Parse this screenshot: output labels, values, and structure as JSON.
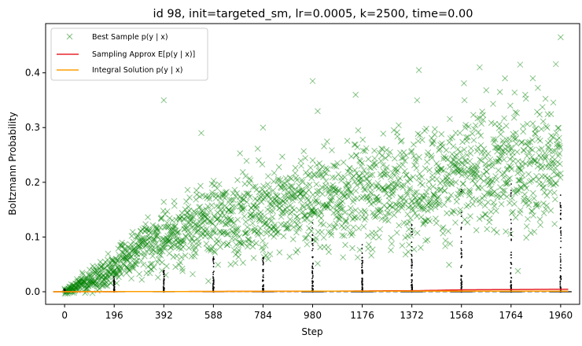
{
  "chart_data": {
    "type": "scatter",
    "title": "id 98, init=targeted_sm, lr=0.0005, k=2500, time=0.00",
    "xlabel": "Step",
    "ylabel": "Boltzmann Probability",
    "xlim": [
      -75,
      2035
    ],
    "ylim": [
      -0.023,
      0.49
    ],
    "xticks": [
      0,
      196,
      392,
      588,
      784,
      980,
      1176,
      1372,
      1568,
      1764,
      1960
    ],
    "yticks": [
      0.0,
      0.1,
      0.2,
      0.3,
      0.4
    ],
    "ytick_labels": [
      "0.0",
      "0.1",
      "0.2",
      "0.3",
      "0.4"
    ],
    "grid": false,
    "legend_position": "top-left",
    "series": [
      {
        "name": "Best Sample p(y | x)",
        "marker": "x",
        "color": "#008000",
        "trend": {
          "x": [
            0,
            100,
            196,
            300,
            392,
            500,
            588,
            700,
            784,
            900,
            980,
            1100,
            1176,
            1300,
            1372,
            1500,
            1568,
            1700,
            1764,
            1900,
            1960
          ],
          "y": [
            0.0,
            0.02,
            0.045,
            0.075,
            0.1,
            0.115,
            0.13,
            0.14,
            0.15,
            0.16,
            0.165,
            0.175,
            0.18,
            0.19,
            0.195,
            0.205,
            0.21,
            0.22,
            0.225,
            0.235,
            0.24
          ]
        },
        "outliers": {
          "x": [
            392,
            540,
            784,
            980,
            1000,
            1150,
            1400,
            1580,
            1640,
            1720,
            1740,
            1800,
            1820,
            1850,
            1960
          ],
          "y": [
            0.35,
            0.29,
            0.3,
            0.385,
            0.33,
            0.36,
            0.405,
            0.35,
            0.41,
            0.365,
            0.39,
            0.415,
            0.36,
            0.39,
            0.465
          ]
        }
      },
      {
        "name": "Sampling Approx E[p(y | x)]",
        "color": "#e8252b",
        "x": [
          0,
          500,
          1000,
          1200,
          1400,
          1568,
          1764,
          1960
        ],
        "y": [
          0.0,
          0.0005,
          0.001,
          0.0015,
          0.002,
          0.0035,
          0.004,
          0.0045
        ]
      },
      {
        "name": "Integral Solution p(y | x)",
        "color": "#ff9f00",
        "x": [
          0,
          500,
          1000,
          1500,
          1960
        ],
        "y": [
          0.0,
          0.0005,
          0.001,
          0.001,
          0.001
        ]
      },
      {
        "name": "",
        "marker": "dot",
        "color": "#000000",
        "x": [
          0,
          196,
          392,
          588,
          784,
          980,
          1176,
          1372,
          1568,
          1764,
          1960
        ],
        "max": [
          0.005,
          0.03,
          0.04,
          0.075,
          0.08,
          0.14,
          0.09,
          0.13,
          0.19,
          0.2,
          0.195
        ]
      }
    ]
  }
}
